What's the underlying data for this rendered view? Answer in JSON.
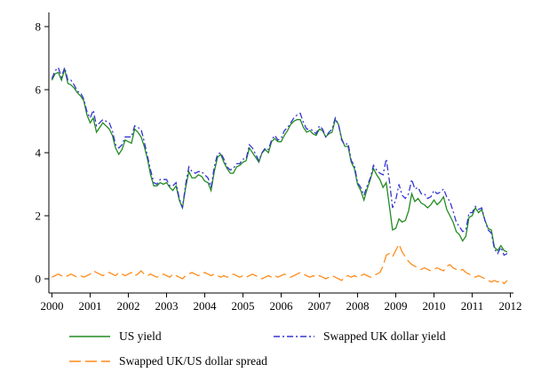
{
  "figure": {
    "background": "#ffffff",
    "axis_color": "#000000"
  },
  "chart_data": {
    "type": "line",
    "title": "",
    "xlabel": "",
    "ylabel": "",
    "grid": false,
    "legend_position": "bottom",
    "xlim": [
      1999.92,
      2012.08
    ],
    "ylim": [
      -0.45,
      8.45
    ],
    "x_ticks": [
      2000,
      2001,
      2002,
      2003,
      2004,
      2005,
      2006,
      2007,
      2008,
      2009,
      2010,
      2011,
      2012
    ],
    "y_ticks": [
      0,
      2,
      4,
      6,
      8
    ],
    "x_start": 2000,
    "x_step": 0.0833333,
    "series": [
      {
        "id": "us-yield",
        "name": "US yield",
        "color": "#228b22",
        "dash": "",
        "values": [
          6.3,
          6.5,
          6.55,
          6.3,
          6.65,
          6.2,
          6.15,
          6.05,
          5.9,
          5.8,
          5.65,
          5.2,
          4.95,
          5.1,
          4.65,
          4.8,
          4.95,
          4.85,
          4.75,
          4.55,
          4.15,
          3.95,
          4.1,
          4.4,
          4.35,
          4.3,
          4.75,
          4.65,
          4.5,
          4.2,
          3.8,
          3.3,
          2.95,
          2.95,
          3.05,
          3.0,
          3.05,
          2.9,
          2.8,
          2.95,
          2.5,
          2.25,
          2.9,
          3.4,
          3.2,
          3.2,
          3.3,
          3.25,
          3.1,
          3.05,
          2.8,
          3.4,
          3.85,
          3.95,
          3.7,
          3.5,
          3.35,
          3.35,
          3.55,
          3.6,
          3.7,
          3.75,
          4.15,
          4.0,
          3.85,
          3.7,
          4.0,
          4.1,
          4.0,
          4.35,
          4.45,
          4.35,
          4.35,
          4.55,
          4.7,
          4.9,
          5.0,
          5.05,
          5.05,
          4.8,
          4.65,
          4.7,
          4.6,
          4.55,
          4.75,
          4.7,
          4.5,
          4.6,
          4.65,
          5.05,
          4.9,
          4.45,
          4.2,
          4.2,
          3.7,
          3.5,
          3.0,
          2.8,
          2.5,
          2.85,
          3.15,
          3.5,
          3.3,
          3.15,
          2.9,
          3.05,
          2.3,
          1.55,
          1.6,
          1.9,
          1.8,
          1.85,
          2.15,
          2.7,
          2.45,
          2.55,
          2.4,
          2.35,
          2.25,
          2.35,
          2.5,
          2.35,
          2.45,
          2.6,
          2.2,
          2.0,
          1.8,
          1.5,
          1.4,
          1.2,
          1.35,
          1.95,
          2.0,
          2.25,
          2.1,
          2.2,
          1.85,
          1.6,
          1.55,
          1.0,
          0.9,
          1.05,
          0.9,
          0.85
        ]
      },
      {
        "id": "uk-swapped-yield",
        "name": "Swapped UK dollar yield",
        "color": "#3535d3",
        "dash": "7,3,2,3",
        "values": [
          6.35,
          6.6,
          6.7,
          6.4,
          6.7,
          6.3,
          6.3,
          6.15,
          5.95,
          5.9,
          5.7,
          5.3,
          5.1,
          5.35,
          4.85,
          4.95,
          5.05,
          5.0,
          4.95,
          4.7,
          4.25,
          4.15,
          4.25,
          4.5,
          4.5,
          4.5,
          4.85,
          4.8,
          4.75,
          4.35,
          3.9,
          3.45,
          3.05,
          3.0,
          3.15,
          3.15,
          3.15,
          2.95,
          2.95,
          3.05,
          2.55,
          2.25,
          3.0,
          3.55,
          3.4,
          3.35,
          3.4,
          3.4,
          3.3,
          3.2,
          2.9,
          3.55,
          3.95,
          4.0,
          3.8,
          3.55,
          3.45,
          3.5,
          3.65,
          3.65,
          3.8,
          3.8,
          4.25,
          4.15,
          3.95,
          3.75,
          4.0,
          4.15,
          4.1,
          4.4,
          4.55,
          4.4,
          4.45,
          4.7,
          4.8,
          4.95,
          5.1,
          5.2,
          5.25,
          4.95,
          4.75,
          4.75,
          4.7,
          4.6,
          4.85,
          4.75,
          4.5,
          4.65,
          4.75,
          5.1,
          4.9,
          4.4,
          4.25,
          4.3,
          3.75,
          3.6,
          3.05,
          2.9,
          2.65,
          2.95,
          3.2,
          3.6,
          3.45,
          3.35,
          3.3,
          3.8,
          3.1,
          2.25,
          2.5,
          3.0,
          2.65,
          2.55,
          2.7,
          3.15,
          2.85,
          2.9,
          2.7,
          2.7,
          2.55,
          2.6,
          2.8,
          2.7,
          2.75,
          2.85,
          2.6,
          2.45,
          2.15,
          1.8,
          1.65,
          1.5,
          1.55,
          2.1,
          2.1,
          2.3,
          2.2,
          2.25,
          1.85,
          1.55,
          1.45,
          0.95,
          0.8,
          1.0,
          0.75,
          0.8
        ]
      },
      {
        "id": "spread",
        "name": "Swapped UK/US dollar spread",
        "color": "#ff8c1a",
        "dash": "13,5",
        "values": [
          0.05,
          0.1,
          0.15,
          0.1,
          0.05,
          0.1,
          0.15,
          0.1,
          0.05,
          0.1,
          0.05,
          0.1,
          0.15,
          0.25,
          0.2,
          0.15,
          0.1,
          0.15,
          0.2,
          0.15,
          0.1,
          0.2,
          0.15,
          0.1,
          0.15,
          0.2,
          0.1,
          0.15,
          0.25,
          0.15,
          0.1,
          0.15,
          0.1,
          0.05,
          0.1,
          0.15,
          0.1,
          0.05,
          0.15,
          0.1,
          0.05,
          0.0,
          0.1,
          0.15,
          0.2,
          0.15,
          0.1,
          0.15,
          0.2,
          0.15,
          0.1,
          0.15,
          0.1,
          0.05,
          0.1,
          0.05,
          0.1,
          0.15,
          0.1,
          0.05,
          0.1,
          0.05,
          0.1,
          0.15,
          0.1,
          0.05,
          0.0,
          0.05,
          0.1,
          0.05,
          0.1,
          0.05,
          0.1,
          0.15,
          0.1,
          0.05,
          0.1,
          0.15,
          0.2,
          0.15,
          0.1,
          0.05,
          0.1,
          0.05,
          0.1,
          0.05,
          0.0,
          0.05,
          0.1,
          0.05,
          0.0,
          -0.05,
          0.05,
          0.1,
          0.05,
          0.1,
          0.05,
          0.1,
          0.15,
          0.1,
          0.05,
          0.1,
          0.15,
          0.2,
          0.4,
          0.75,
          0.8,
          0.7,
          0.9,
          1.1,
          0.85,
          0.7,
          0.55,
          0.45,
          0.4,
          0.35,
          0.3,
          0.35,
          0.3,
          0.25,
          0.3,
          0.35,
          0.3,
          0.25,
          0.4,
          0.45,
          0.35,
          0.3,
          0.25,
          0.3,
          0.2,
          0.15,
          0.1,
          0.05,
          0.1,
          0.05,
          0.0,
          -0.05,
          -0.1,
          -0.05,
          -0.1,
          -0.05,
          -0.15,
          -0.05
        ]
      }
    ]
  }
}
